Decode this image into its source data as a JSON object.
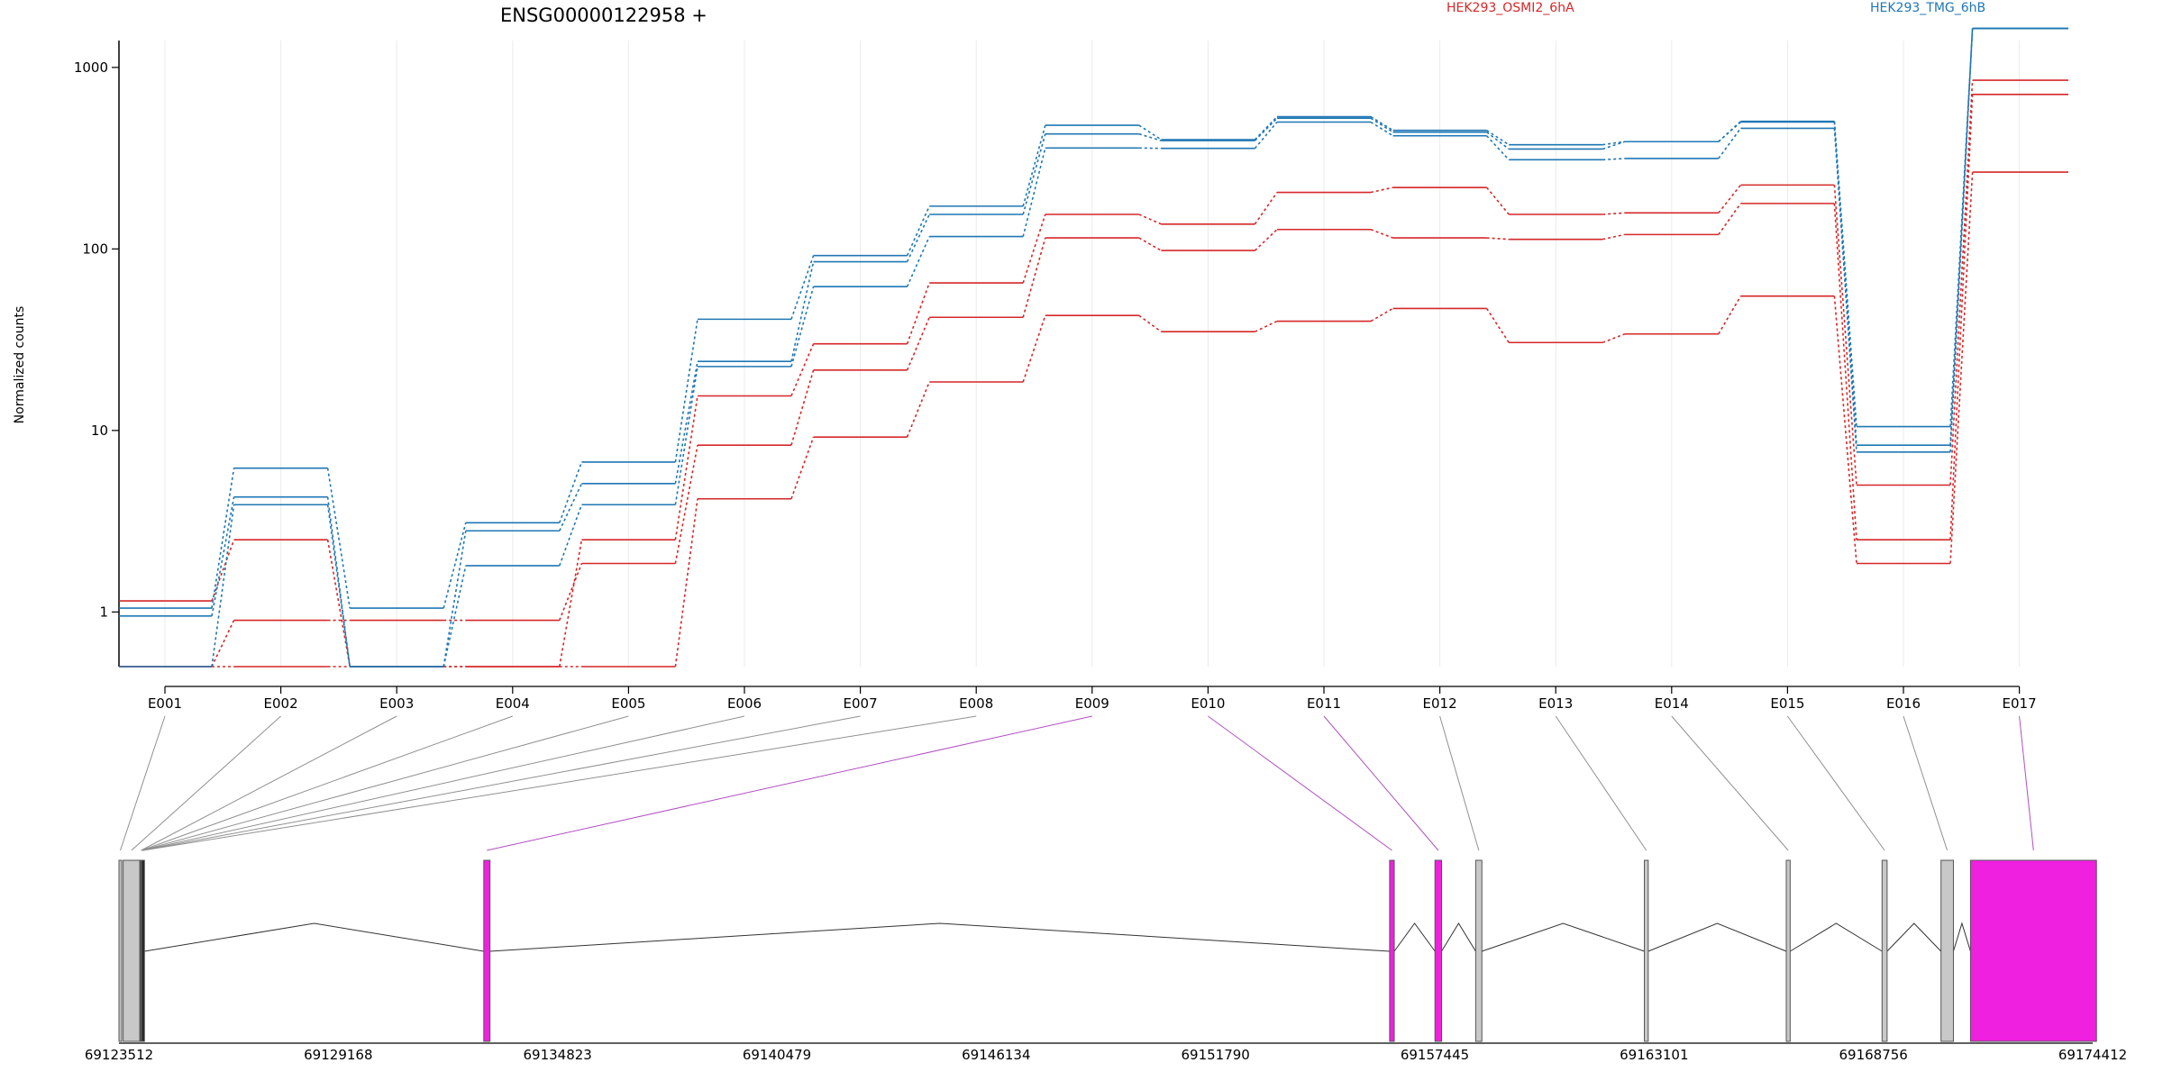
{
  "title": "ENSG00000122958 +",
  "legend": [
    {
      "name": "HEK293_OSMI2_6hA",
      "color": "#d62728"
    },
    {
      "name": "HEK293_TMG_6hB",
      "color": "#1f77b4"
    }
  ],
  "chart_data": {
    "type": "line",
    "title": "ENSG00000122958 +",
    "ylabel": "Normalized counts",
    "yscale": "log",
    "yticks": [
      1,
      10,
      100,
      1000
    ],
    "ytick_labels": [
      "1",
      "10",
      "100",
      "1000"
    ],
    "ylim": [
      0.5,
      2200
    ],
    "grid": "vertical",
    "legend_position": "top",
    "categories": [
      "E001",
      "E002",
      "E003",
      "E004",
      "E005",
      "E006",
      "E007",
      "E008",
      "E009",
      "E010",
      "E011",
      "E012",
      "E013",
      "E014",
      "E015",
      "E016",
      "E017"
    ],
    "series": [
      {
        "group": "HEK293_OSMI2_6hA",
        "color": "#d62728",
        "values": [
          1.15,
          2.5,
          0.5,
          0.5,
          2.5,
          15.5,
          30,
          65,
          155,
          137,
          205,
          218,
          155,
          158,
          225,
          5.0,
          850
        ]
      },
      {
        "group": "HEK293_OSMI2_6hA",
        "color": "#d62728",
        "values": [
          0.5,
          0.9,
          0.9,
          0.9,
          1.85,
          8.3,
          21.5,
          42,
          115,
          98,
          128,
          115,
          113,
          120,
          178,
          2.5,
          710
        ]
      },
      {
        "group": "HEK293_OSMI2_6hA",
        "color": "#d62728",
        "values": [
          0.5,
          0.5,
          0.5,
          0.5,
          0.5,
          4.2,
          9.2,
          18.5,
          43,
          35,
          40,
          47,
          30.5,
          34,
          55,
          1.85,
          265
        ]
      },
      {
        "group": "HEK293_TMG_6hB",
        "color": "#1f77b4",
        "values": [
          1.05,
          6.2,
          1.05,
          3.1,
          6.7,
          41,
          92,
          172,
          480,
          400,
          535,
          450,
          375,
          390,
          505,
          10.5,
          1640
        ]
      },
      {
        "group": "HEK293_TMG_6hB",
        "color": "#1f77b4",
        "values": [
          0.95,
          4.3,
          0.5,
          2.8,
          5.1,
          24,
          85,
          155,
          430,
          395,
          525,
          440,
          355,
          390,
          500,
          8.3,
          1640
        ]
      },
      {
        "group": "HEK293_TMG_6hB",
        "color": "#1f77b4",
        "values": [
          0.5,
          3.9,
          0.5,
          1.8,
          3.9,
          22.5,
          62,
          117,
          360,
          358,
          500,
          420,
          310,
          315,
          462,
          7.6,
          1640
        ]
      }
    ]
  },
  "gene_model": {
    "coord_ticks": [
      "69123512",
      "69129168",
      "69134823",
      "69140479",
      "69146134",
      "69151790",
      "69157445",
      "69163101",
      "69168756",
      "69174412"
    ],
    "coord_start": 69123512,
    "coord_end": 69174412,
    "exons": [
      {
        "id": "E001",
        "start": 69123512,
        "end": 69123580,
        "color": "#c8c8c8",
        "highlight": false
      },
      {
        "id": "E002",
        "start": 69123620,
        "end": 69124050,
        "color": "#c8c8c8",
        "highlight": false
      },
      {
        "id": "E003",
        "start": 69124050,
        "end": 69124060,
        "color": "#222222",
        "highlight": false
      },
      {
        "id": "E004",
        "start": 69124060,
        "end": 69124070,
        "color": "#222222",
        "highlight": false
      },
      {
        "id": "E005",
        "start": 69124070,
        "end": 69124080,
        "color": "#222222",
        "highlight": false
      },
      {
        "id": "E006",
        "start": 69124080,
        "end": 69124090,
        "color": "#222222",
        "highlight": false
      },
      {
        "id": "E007",
        "start": 69124090,
        "end": 69124100,
        "color": "#222222",
        "highlight": false
      },
      {
        "id": "E008",
        "start": 69124100,
        "end": 69124110,
        "color": "#222222",
        "highlight": false
      },
      {
        "id": "E009",
        "start": 69132920,
        "end": 69133080,
        "color": "#f020e0",
        "highlight": true
      },
      {
        "id": "E010",
        "start": 69156280,
        "end": 69156400,
        "color": "#f020e0",
        "highlight": true
      },
      {
        "id": "E011",
        "start": 69157450,
        "end": 69157620,
        "color": "#f020e0",
        "highlight": true
      },
      {
        "id": "E012",
        "start": 69158500,
        "end": 69158660,
        "color": "#c8c8c8",
        "highlight": false
      },
      {
        "id": "E013",
        "start": 69162850,
        "end": 69162950,
        "color": "#c8c8c8",
        "highlight": false
      },
      {
        "id": "E014",
        "start": 69166510,
        "end": 69166610,
        "color": "#c8c8c8",
        "highlight": false
      },
      {
        "id": "E015",
        "start": 69168980,
        "end": 69169110,
        "color": "#c8c8c8",
        "highlight": false
      },
      {
        "id": "E016",
        "start": 69170500,
        "end": 69170820,
        "color": "#c8c8c8",
        "highlight": false
      },
      {
        "id": "E017",
        "start": 69171260,
        "end": 69174510,
        "color": "#f020e0",
        "highlight": true
      }
    ]
  }
}
